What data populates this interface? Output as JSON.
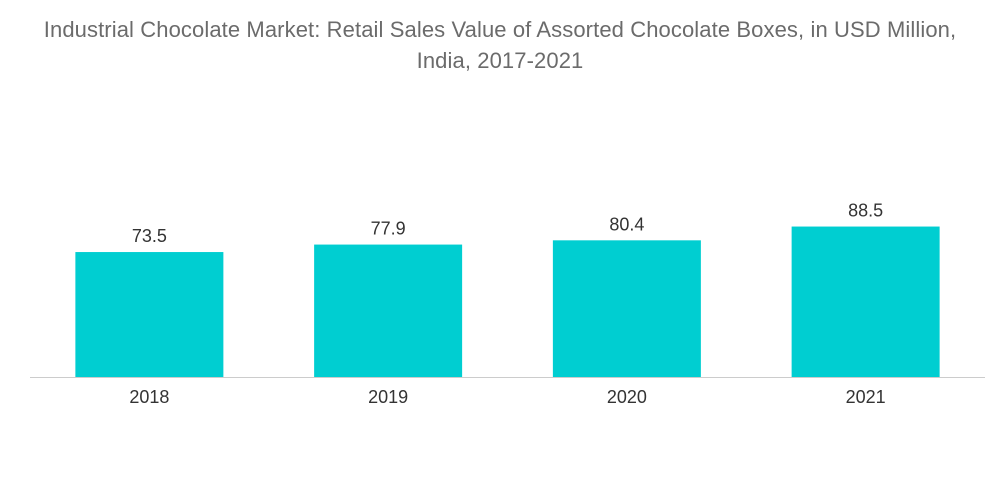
{
  "chart_data": {
    "type": "bar",
    "title_lines": [
      "Industrial Chocolate Market: Retail Sales Value of Assorted Chocolate Boxes, in USD Million,",
      "India, 2017-2021"
    ],
    "categories": [
      "2018",
      "2019",
      "2020",
      "2021"
    ],
    "values": [
      73.5,
      77.9,
      80.4,
      88.5
    ],
    "data_labels": [
      "73.5",
      "77.9",
      "80.4",
      "88.5"
    ],
    "xlabel": "",
    "ylabel": "",
    "ylim": [
      0,
      100
    ],
    "grid": false,
    "legend": "none",
    "colors": {
      "bar": "#00CED1",
      "axis": "#cccccc",
      "title": "#6b6b6b",
      "text": "#333333"
    }
  }
}
